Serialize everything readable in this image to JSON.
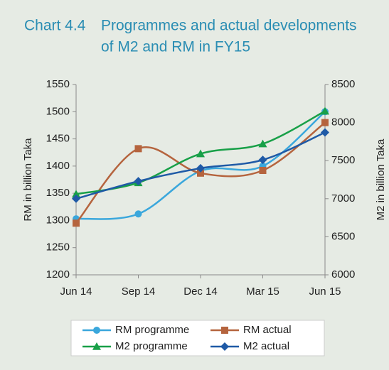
{
  "chart_data": {
    "type": "line",
    "number": "Chart 4.4",
    "title": [
      "Programmes and actual developments",
      "of M2 and RM in FY15"
    ],
    "ylabel": "RM in billion Taka",
    "y2label": "M2 in billion Taka",
    "categories": [
      "Jun 14",
      "Sep 14",
      "Dec 14",
      "Mar 15",
      "Jun 15"
    ],
    "ylim": [
      1200,
      1550
    ],
    "yticks": [
      1200,
      1250,
      1300,
      1350,
      1400,
      1450,
      1500,
      1550
    ],
    "y2lim": [
      6000,
      8500
    ],
    "y2ticks": [
      6000,
      6500,
      7000,
      7500,
      8000,
      8500
    ],
    "series": [
      {
        "name": "RM programme",
        "color": "#3aa7dc",
        "marker": "circle",
        "values": [
          1303,
          1312,
          1391,
          1400,
          1500
        ]
      },
      {
        "name": "RM actual",
        "color": "#b5643e",
        "marker": "square",
        "values": [
          1295,
          1432,
          1387,
          1392,
          1480
        ]
      },
      {
        "name": "M2 programme",
        "color": "#18a048",
        "marker": "triangle",
        "axis": "y2",
        "values": [
          7060,
          7210,
          7590,
          7720,
          8150
        ]
      },
      {
        "name": "M2 actual",
        "color": "#1f5aa6",
        "marker": "diamond",
        "axis": "y2",
        "values": [
          7000,
          7230,
          7400,
          7510,
          7870
        ]
      }
    ]
  }
}
